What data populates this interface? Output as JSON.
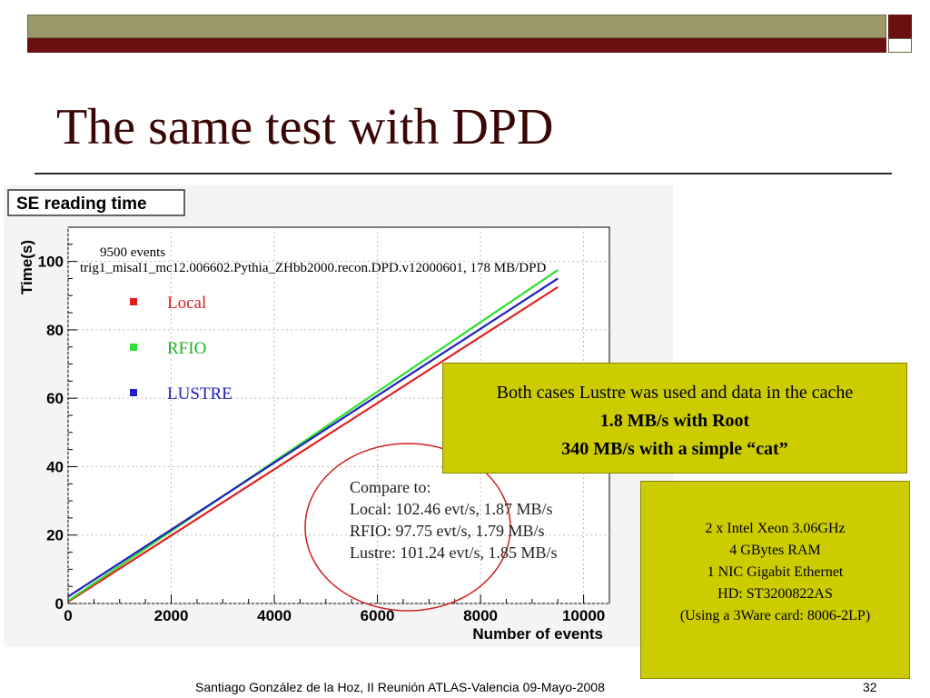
{
  "slide": {
    "title": "The same test with DPD",
    "footer": "Santiago González de la Hoz, II Reunión  ATLAS-Valencia  09-Mayo-2008",
    "page_number": "32"
  },
  "notes": {
    "cache_line": "Both cases Lustre was used and data in the cache",
    "root_line": "1.8 MB/s with Root",
    "cat_line": "340 MB/s with a simple “cat”"
  },
  "hardware": [
    "2 x Intel Xeon  3.06GHz",
    "4 GBytes RAM",
    "1 NIC Gigabit Ethernet",
    "HD: ST3200822AS",
    "(Using a 3Ware card: 8006-2LP)"
  ],
  "chart_data": {
    "type": "line",
    "title": "SE reading time",
    "xlabel": "Number of events",
    "ylabel": "Time(s)",
    "xlim": [
      0,
      10500
    ],
    "ylim": [
      0,
      110
    ],
    "x_ticks": [
      0,
      2000,
      4000,
      6000,
      8000,
      10000
    ],
    "y_ticks": [
      0,
      20,
      40,
      60,
      80,
      100
    ],
    "grid": true,
    "legend_position": "upper-left",
    "annotations": {
      "events": "9500 events",
      "dataset": "trig1_misal1_mc12.006602.Pythia_ZHbb2000.recon.DPD.v12000601, 178 MB/DPD",
      "compare_header": "Compare to:",
      "compare_local": "Local:  102.46 evt/s, 1.87 MB/s",
      "compare_rfio": "RFIO:   97.75 evt/s,  1.79 MB/s",
      "compare_lustre": "Lustre: 101.24 evt/s, 1.85 MB/s"
    },
    "series": [
      {
        "name": "Local",
        "color": "#e02020",
        "x": [
          0,
          9500
        ],
        "y": [
          0.5,
          92.5
        ]
      },
      {
        "name": "RFIO",
        "color": "#30e030",
        "x": [
          0,
          9500
        ],
        "y": [
          0.8,
          97.5
        ]
      },
      {
        "name": "LUSTRE",
        "color": "#2020c0",
        "x": [
          0,
          9500
        ],
        "y": [
          2.0,
          95.0
        ]
      }
    ]
  }
}
